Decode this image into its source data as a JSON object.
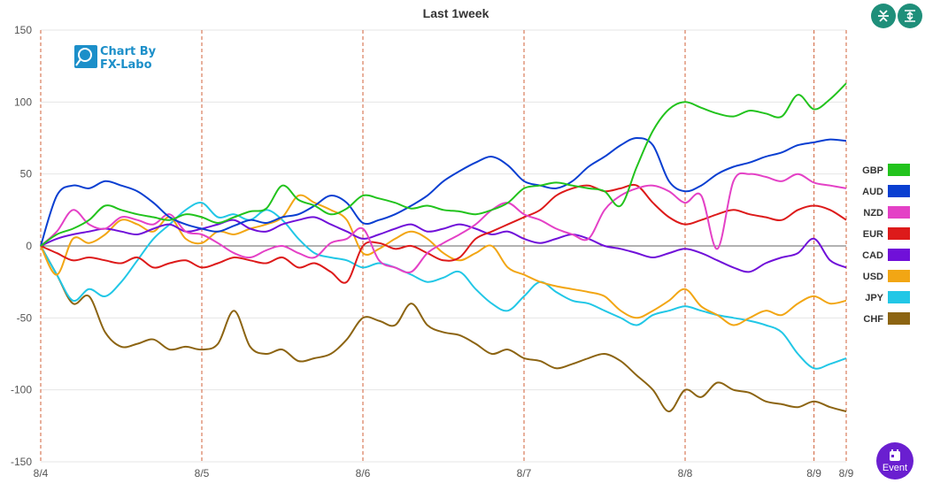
{
  "chart_data": {
    "type": "line",
    "title": "Last 1week",
    "ylim": [
      -150,
      150
    ],
    "yticks": [
      150,
      100,
      50,
      0,
      -50,
      -100,
      -150
    ],
    "x_labels": [
      "8/4",
      "8/5",
      "8/6",
      "8/7",
      "8/8",
      "8/9",
      "8/9"
    ],
    "x_label_positions": [
      0,
      1,
      2,
      3,
      4,
      4.8,
      5
    ],
    "xlim": [
      0,
      5
    ],
    "grid": true,
    "legend_position": "right",
    "series": [
      {
        "name": "GBP",
        "color": "#22c31d",
        "x": [
          0,
          0.1,
          0.2,
          0.3,
          0.4,
          0.5,
          0.6,
          0.7,
          0.8,
          0.9,
          1,
          1.1,
          1.2,
          1.3,
          1.4,
          1.5,
          1.6,
          1.7,
          1.8,
          1.9,
          2,
          2.1,
          2.2,
          2.3,
          2.4,
          2.5,
          2.6,
          2.7,
          2.8,
          2.9,
          3,
          3.1,
          3.2,
          3.3,
          3.4,
          3.5,
          3.6,
          3.7,
          3.8,
          3.9,
          4,
          4.1,
          4.2,
          4.3,
          4.4,
          4.5,
          4.6,
          4.7,
          4.8,
          4.9,
          5
        ],
        "y": [
          0,
          8,
          12,
          18,
          28,
          25,
          22,
          20,
          18,
          22,
          20,
          16,
          20,
          24,
          26,
          42,
          32,
          28,
          22,
          26,
          35,
          33,
          30,
          26,
          28,
          25,
          24,
          22,
          25,
          30,
          40,
          42,
          44,
          42,
          40,
          38,
          28,
          55,
          80,
          95,
          100,
          96,
          92,
          90,
          94,
          92,
          90,
          105,
          95,
          102,
          113
        ]
      },
      {
        "name": "AUD",
        "color": "#0a3fd1",
        "x": [
          0,
          0.1,
          0.2,
          0.3,
          0.4,
          0.5,
          0.6,
          0.7,
          0.8,
          0.9,
          1,
          1.1,
          1.2,
          1.3,
          1.4,
          1.5,
          1.6,
          1.7,
          1.8,
          1.9,
          2,
          2.1,
          2.2,
          2.3,
          2.4,
          2.5,
          2.6,
          2.7,
          2.8,
          2.9,
          3,
          3.1,
          3.2,
          3.3,
          3.4,
          3.5,
          3.6,
          3.7,
          3.8,
          3.9,
          4,
          4.1,
          4.2,
          4.3,
          4.4,
          4.5,
          4.6,
          4.7,
          4.8,
          4.9,
          5
        ],
        "y": [
          0,
          35,
          42,
          40,
          45,
          42,
          38,
          30,
          20,
          15,
          12,
          10,
          14,
          18,
          16,
          20,
          22,
          28,
          35,
          30,
          16,
          18,
          22,
          28,
          35,
          45,
          52,
          58,
          62,
          56,
          45,
          42,
          40,
          45,
          55,
          62,
          70,
          75,
          70,
          45,
          38,
          42,
          50,
          55,
          58,
          62,
          65,
          70,
          72,
          74,
          73
        ]
      },
      {
        "name": "NZD",
        "color": "#e441c6",
        "x": [
          0,
          0.1,
          0.2,
          0.3,
          0.4,
          0.5,
          0.6,
          0.7,
          0.8,
          0.9,
          1,
          1.1,
          1.2,
          1.3,
          1.4,
          1.5,
          1.6,
          1.7,
          1.8,
          1.9,
          2,
          2.1,
          2.2,
          2.3,
          2.4,
          2.5,
          2.6,
          2.7,
          2.8,
          2.9,
          3,
          3.1,
          3.2,
          3.3,
          3.4,
          3.5,
          3.6,
          3.7,
          3.8,
          3.9,
          4,
          4.1,
          4.2,
          4.3,
          4.4,
          4.5,
          4.6,
          4.7,
          4.8,
          4.9,
          5
        ],
        "y": [
          0,
          10,
          25,
          15,
          12,
          20,
          18,
          15,
          22,
          10,
          8,
          2,
          -5,
          -8,
          -3,
          0,
          -5,
          -8,
          2,
          5,
          12,
          -10,
          -15,
          -18,
          -5,
          2,
          8,
          15,
          25,
          30,
          22,
          18,
          12,
          8,
          5,
          25,
          35,
          40,
          42,
          38,
          30,
          35,
          -2,
          45,
          50,
          48,
          45,
          50,
          44,
          42,
          40
        ]
      },
      {
        "name": "EUR",
        "color": "#dd1a1a",
        "x": [
          0,
          0.1,
          0.2,
          0.3,
          0.4,
          0.5,
          0.6,
          0.7,
          0.8,
          0.9,
          1,
          1.1,
          1.2,
          1.3,
          1.4,
          1.5,
          1.6,
          1.7,
          1.8,
          1.9,
          2,
          2.1,
          2.2,
          2.3,
          2.4,
          2.5,
          2.6,
          2.7,
          2.8,
          2.9,
          3,
          3.1,
          3.2,
          3.3,
          3.4,
          3.5,
          3.6,
          3.7,
          3.8,
          3.9,
          4,
          4.1,
          4.2,
          4.3,
          4.4,
          4.5,
          4.6,
          4.7,
          4.8,
          4.9,
          5
        ],
        "y": [
          0,
          -5,
          -10,
          -8,
          -10,
          -12,
          -8,
          -15,
          -12,
          -10,
          -15,
          -12,
          -8,
          -10,
          -12,
          -8,
          -15,
          -12,
          -18,
          -25,
          0,
          2,
          -2,
          0,
          -5,
          -10,
          -8,
          5,
          10,
          15,
          20,
          25,
          35,
          40,
          42,
          38,
          40,
          42,
          30,
          20,
          15,
          18,
          22,
          25,
          22,
          20,
          18,
          25,
          28,
          25,
          18
        ]
      },
      {
        "name": "CAD",
        "color": "#7010d9",
        "x": [
          0,
          0.1,
          0.2,
          0.3,
          0.4,
          0.5,
          0.6,
          0.7,
          0.8,
          0.9,
          1,
          1.1,
          1.2,
          1.3,
          1.4,
          1.5,
          1.6,
          1.7,
          1.8,
          1.9,
          2,
          2.1,
          2.2,
          2.3,
          2.4,
          2.5,
          2.6,
          2.7,
          2.8,
          2.9,
          3,
          3.1,
          3.2,
          3.3,
          3.4,
          3.5,
          3.6,
          3.7,
          3.8,
          3.9,
          4,
          4.1,
          4.2,
          4.3,
          4.4,
          4.5,
          4.6,
          4.7,
          4.8,
          4.9,
          5
        ],
        "y": [
          0,
          5,
          8,
          10,
          12,
          10,
          8,
          12,
          15,
          10,
          12,
          15,
          18,
          12,
          10,
          15,
          18,
          20,
          15,
          10,
          5,
          8,
          12,
          15,
          10,
          12,
          15,
          12,
          8,
          10,
          5,
          2,
          5,
          8,
          5,
          0,
          -2,
          -5,
          -8,
          -5,
          -2,
          -5,
          -10,
          -15,
          -18,
          -12,
          -8,
          -5,
          5,
          -10,
          -15
        ]
      },
      {
        "name": "USD",
        "color": "#f2a614",
        "x": [
          0,
          0.1,
          0.2,
          0.3,
          0.4,
          0.5,
          0.6,
          0.7,
          0.8,
          0.9,
          1,
          1.1,
          1.2,
          1.3,
          1.4,
          1.5,
          1.6,
          1.7,
          1.8,
          1.9,
          2,
          2.1,
          2.2,
          2.3,
          2.4,
          2.5,
          2.6,
          2.7,
          2.8,
          2.9,
          3,
          3.1,
          3.2,
          3.3,
          3.4,
          3.5,
          3.6,
          3.7,
          3.8,
          3.9,
          4,
          4.1,
          4.2,
          4.3,
          4.4,
          4.5,
          4.6,
          4.7,
          4.8,
          4.9,
          5
        ],
        "y": [
          0,
          -20,
          5,
          2,
          8,
          18,
          15,
          10,
          20,
          5,
          2,
          10,
          8,
          12,
          15,
          20,
          35,
          30,
          25,
          18,
          -5,
          -2,
          5,
          10,
          5,
          -5,
          -10,
          -5,
          0,
          -15,
          -20,
          -25,
          -28,
          -30,
          -32,
          -35,
          -45,
          -50,
          -45,
          -38,
          -30,
          -42,
          -48,
          -55,
          -50,
          -45,
          -48,
          -40,
          -35,
          -40,
          -38
        ]
      },
      {
        "name": "JPY",
        "color": "#22c7e6",
        "x": [
          0,
          0.1,
          0.2,
          0.3,
          0.4,
          0.5,
          0.6,
          0.7,
          0.8,
          0.9,
          1,
          1.1,
          1.2,
          1.3,
          1.4,
          1.5,
          1.6,
          1.7,
          1.8,
          1.9,
          2,
          2.1,
          2.2,
          2.3,
          2.4,
          2.5,
          2.6,
          2.7,
          2.8,
          2.9,
          3,
          3.1,
          3.2,
          3.3,
          3.4,
          3.5,
          3.6,
          3.7,
          3.8,
          3.9,
          4,
          4.1,
          4.2,
          4.3,
          4.4,
          4.5,
          4.6,
          4.7,
          4.8,
          4.9,
          5
        ],
        "y": [
          0,
          -20,
          -38,
          -30,
          -35,
          -25,
          -10,
          5,
          15,
          25,
          30,
          20,
          22,
          18,
          25,
          18,
          5,
          -5,
          -8,
          -10,
          -15,
          -12,
          -15,
          -20,
          -25,
          -22,
          -18,
          -30,
          -40,
          -45,
          -35,
          -25,
          -32,
          -38,
          -40,
          -45,
          -50,
          -55,
          -48,
          -45,
          -42,
          -45,
          -48,
          -50,
          -52,
          -55,
          -60,
          -75,
          -85,
          -82,
          -78
        ]
      },
      {
        "name": "CHF",
        "color": "#8c6412",
        "x": [
          0,
          0.1,
          0.2,
          0.3,
          0.4,
          0.5,
          0.6,
          0.7,
          0.8,
          0.9,
          1,
          1.1,
          1.2,
          1.3,
          1.4,
          1.5,
          1.6,
          1.7,
          1.8,
          1.9,
          2,
          2.1,
          2.2,
          2.3,
          2.4,
          2.5,
          2.6,
          2.7,
          2.8,
          2.9,
          3,
          3.1,
          3.2,
          3.3,
          3.4,
          3.5,
          3.6,
          3.7,
          3.8,
          3.9,
          4,
          4.1,
          4.2,
          4.3,
          4.4,
          4.5,
          4.6,
          4.7,
          4.8,
          4.9,
          5
        ],
        "y": [
          0,
          -20,
          -40,
          -35,
          -60,
          -70,
          -68,
          -65,
          -72,
          -70,
          -72,
          -68,
          -45,
          -70,
          -75,
          -72,
          -80,
          -78,
          -75,
          -65,
          -50,
          -52,
          -55,
          -40,
          -55,
          -60,
          -62,
          -68,
          -75,
          -72,
          -78,
          -80,
          -85,
          -82,
          -78,
          -75,
          -80,
          -90,
          -100,
          -115,
          -100,
          -105,
          -95,
          -100,
          -102,
          -108,
          -110,
          -112,
          -108,
          -112,
          -115
        ]
      }
    ]
  },
  "logo": {
    "line1": "Chart By",
    "line2": "FX-Labo"
  },
  "toolbar": {
    "event_label": "Event"
  }
}
